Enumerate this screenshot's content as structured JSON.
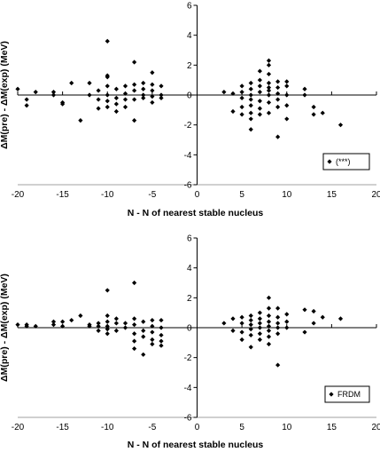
{
  "chart_data": [
    {
      "type": "scatter",
      "xlabel": "N - N of nearest stable nucleus",
      "ylabel": "ΔM(pre) - ΔM(exp)  (MeV)",
      "xlim": [
        -20,
        20
      ],
      "ylim": [
        -6,
        6
      ],
      "xticks": [
        "-20",
        "-15",
        "-10",
        "-5",
        "0",
        "5",
        "10",
        "15",
        "20"
      ],
      "yticks": [
        "6",
        "4",
        "2",
        "0",
        "-2",
        "-4",
        "-6"
      ],
      "grid": false,
      "legend_position": "bottom-right",
      "series": [
        {
          "name": "(***)",
          "marker": "diamond",
          "points": [
            [
              -20,
              0.4
            ],
            [
              -19,
              -0.3
            ],
            [
              -19,
              -0.7
            ],
            [
              -18,
              0.2
            ],
            [
              -16,
              0.2
            ],
            [
              -16,
              0.0
            ],
            [
              -15,
              -0.5
            ],
            [
              -15,
              -0.6
            ],
            [
              -14,
              0.8
            ],
            [
              -13,
              -1.7
            ],
            [
              -12,
              0.8
            ],
            [
              -12,
              0.0
            ],
            [
              -11,
              0.3
            ],
            [
              -11,
              -0.3
            ],
            [
              -11,
              -0.9
            ],
            [
              -10,
              3.6
            ],
            [
              -10,
              1.3
            ],
            [
              -10,
              1.2
            ],
            [
              -10,
              0.6
            ],
            [
              -10,
              0.0
            ],
            [
              -10,
              -0.4
            ],
            [
              -10,
              -0.8
            ],
            [
              -9,
              0.4
            ],
            [
              -9,
              -0.2
            ],
            [
              -9,
              -0.6
            ],
            [
              -9,
              -1.1
            ],
            [
              -8,
              0.6
            ],
            [
              -8,
              0.1
            ],
            [
              -8,
              -0.3
            ],
            [
              -8,
              -0.8
            ],
            [
              -7,
              2.2
            ],
            [
              -7,
              0.7
            ],
            [
              -7,
              0.3
            ],
            [
              -7,
              -0.3
            ],
            [
              -7,
              -1.7
            ],
            [
              -6,
              0.8
            ],
            [
              -6,
              0.4
            ],
            [
              -6,
              0.0
            ],
            [
              -6,
              -0.2
            ],
            [
              -5,
              1.5
            ],
            [
              -5,
              0.7
            ],
            [
              -5,
              0.3
            ],
            [
              -5,
              -0.1
            ],
            [
              -5,
              -0.5
            ],
            [
              -4,
              0.6
            ],
            [
              -4,
              0.0
            ],
            [
              -4,
              -0.2
            ],
            [
              3,
              0.2
            ],
            [
              4,
              0.1
            ],
            [
              4,
              -1.1
            ],
            [
              5,
              0.6
            ],
            [
              5,
              0.2
            ],
            [
              5,
              -0.2
            ],
            [
              5,
              -0.8
            ],
            [
              5,
              -1.3
            ],
            [
              6,
              0.8
            ],
            [
              6,
              0.4
            ],
            [
              6,
              0.0
            ],
            [
              6,
              -0.3
            ],
            [
              6,
              -0.7
            ],
            [
              6,
              -1.2
            ],
            [
              6,
              -1.6
            ],
            [
              6,
              -2.3
            ],
            [
              7,
              1.6
            ],
            [
              7,
              1.0
            ],
            [
              7,
              0.6
            ],
            [
              7,
              0.2
            ],
            [
              7,
              -0.4
            ],
            [
              7,
              -0.9
            ],
            [
              7,
              -1.3
            ],
            [
              8,
              2.3
            ],
            [
              8,
              2.0
            ],
            [
              8,
              1.4
            ],
            [
              8,
              0.8
            ],
            [
              8,
              0.5
            ],
            [
              8,
              0.3
            ],
            [
              8,
              0.0
            ],
            [
              8,
              -0.5
            ],
            [
              8,
              -1.2
            ],
            [
              9,
              0.9
            ],
            [
              9,
              0.5
            ],
            [
              9,
              0.1
            ],
            [
              9,
              -0.3
            ],
            [
              9,
              -0.8
            ],
            [
              9,
              -2.8
            ],
            [
              10,
              0.9
            ],
            [
              10,
              0.6
            ],
            [
              10,
              0.0
            ],
            [
              10,
              -0.7
            ],
            [
              10,
              -1.6
            ],
            [
              12,
              0.4
            ],
            [
              12,
              0.0
            ],
            [
              13,
              -0.8
            ],
            [
              13,
              -1.3
            ],
            [
              14,
              -1.2
            ],
            [
              16,
              -2.0
            ]
          ]
        }
      ]
    },
    {
      "type": "scatter",
      "xlabel": "N - N of nearest stable nucleus",
      "ylabel": "ΔM(pre) - ΔM(exp)  (MeV)",
      "xlim": [
        -20,
        20
      ],
      "ylim": [
        -6,
        6
      ],
      "xticks": [
        "-20",
        "-15",
        "-10",
        "-5",
        "0",
        "5",
        "10",
        "15",
        "20"
      ],
      "yticks": [
        "6",
        "4",
        "2",
        "0",
        "-2",
        "-4",
        "-6"
      ],
      "grid": false,
      "legend_position": "bottom-right",
      "series": [
        {
          "name": "FRDM",
          "marker": "diamond",
          "points": [
            [
              -20,
              0.2
            ],
            [
              -19,
              0.2
            ],
            [
              -19,
              0.1
            ],
            [
              -18,
              0.1
            ],
            [
              -16,
              0.4
            ],
            [
              -16,
              0.2
            ],
            [
              -15,
              0.4
            ],
            [
              -15,
              0.1
            ],
            [
              -14,
              0.5
            ],
            [
              -13,
              0.8
            ],
            [
              -12,
              0.2
            ],
            [
              -12,
              0.1
            ],
            [
              -11,
              0.3
            ],
            [
              -11,
              0.1
            ],
            [
              -11,
              -0.2
            ],
            [
              -10,
              2.5
            ],
            [
              -10,
              0.8
            ],
            [
              -10,
              0.4
            ],
            [
              -10,
              0.1
            ],
            [
              -10,
              -0.1
            ],
            [
              -10,
              -0.4
            ],
            [
              -9,
              0.6
            ],
            [
              -9,
              0.3
            ],
            [
              -9,
              -0.2
            ],
            [
              -8,
              0.3
            ],
            [
              -8,
              0.0
            ],
            [
              -7,
              3.0
            ],
            [
              -7,
              0.6
            ],
            [
              -7,
              0.2
            ],
            [
              -7,
              -0.4
            ],
            [
              -7,
              -0.9
            ],
            [
              -7,
              -1.4
            ],
            [
              -6,
              0.4
            ],
            [
              -6,
              -0.2
            ],
            [
              -6,
              -0.6
            ],
            [
              -6,
              -1.8
            ],
            [
              -5,
              0.5
            ],
            [
              -5,
              0.1
            ],
            [
              -5,
              -0.3
            ],
            [
              -5,
              -0.8
            ],
            [
              -5,
              -1.1
            ],
            [
              -4,
              0.5
            ],
            [
              -4,
              0.0
            ],
            [
              -4,
              -0.5
            ],
            [
              -4,
              -0.9
            ],
            [
              -4,
              -1.2
            ],
            [
              3,
              0.3
            ],
            [
              4,
              0.6
            ],
            [
              4,
              -0.2
            ],
            [
              5,
              0.7
            ],
            [
              5,
              0.3
            ],
            [
              5,
              -0.3
            ],
            [
              5,
              -0.8
            ],
            [
              6,
              0.8
            ],
            [
              6,
              0.5
            ],
            [
              6,
              0.2
            ],
            [
              6,
              -0.1
            ],
            [
              6,
              -0.5
            ],
            [
              6,
              -1.3
            ],
            [
              7,
              1.0
            ],
            [
              7,
              0.6
            ],
            [
              7,
              0.3
            ],
            [
              7,
              0.0
            ],
            [
              7,
              -0.4
            ],
            [
              7,
              -0.8
            ],
            [
              8,
              2.0
            ],
            [
              8,
              1.3
            ],
            [
              8,
              0.8
            ],
            [
              8,
              0.4
            ],
            [
              8,
              0.1
            ],
            [
              8,
              -0.2
            ],
            [
              8,
              -0.6
            ],
            [
              8,
              -1.1
            ],
            [
              9,
              1.3
            ],
            [
              9,
              0.7
            ],
            [
              9,
              0.3
            ],
            [
              9,
              0.0
            ],
            [
              9,
              -0.4
            ],
            [
              9,
              -2.5
            ],
            [
              10,
              0.9
            ],
            [
              10,
              0.4
            ],
            [
              10,
              0.0
            ],
            [
              12,
              1.2
            ],
            [
              12,
              -0.3
            ],
            [
              13,
              1.1
            ],
            [
              13,
              0.3
            ],
            [
              14,
              0.7
            ],
            [
              16,
              0.6
            ]
          ]
        }
      ]
    }
  ]
}
